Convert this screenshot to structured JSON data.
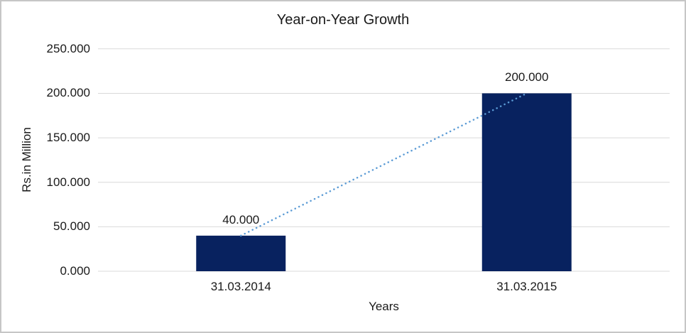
{
  "chart_data": {
    "type": "bar",
    "title": "Year-on-Year Growth",
    "xlabel": "Years",
    "ylabel": "Rs.in Million",
    "categories": [
      "31.03.2014",
      "31.03.2015"
    ],
    "values": [
      40,
      200
    ],
    "data_labels": [
      "40.000",
      "200.000"
    ],
    "ylim": [
      0,
      250
    ],
    "ytick_values": [
      0,
      50,
      100,
      150,
      200,
      250
    ],
    "ytick_labels": [
      "0.000",
      "50.000",
      "100.000",
      "150.000",
      "200.000",
      "250.000"
    ],
    "grid": true,
    "legend": false,
    "trendline": {
      "present": true,
      "style": "dotted",
      "from": [
        0,
        40
      ],
      "to": [
        1,
        200
      ]
    },
    "colors": {
      "bar": "#08225f",
      "trendline": "#5b9bd5",
      "gridline": "#d9d9d9",
      "text": "#1a1a1a",
      "frame_border": "#c6c6c6",
      "background": "#ffffff"
    }
  }
}
